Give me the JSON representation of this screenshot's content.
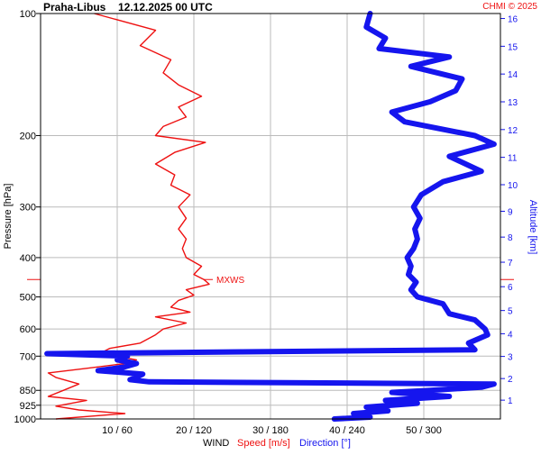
{
  "header": {
    "station": "Praha-Libus",
    "datetime": "12.12.2025 00 UTC",
    "copyright": "CHMI © 2025"
  },
  "colors": {
    "speed": "#ee1111",
    "direction": "#1515ee",
    "grid": "#bbbbbb",
    "axis": "#000000"
  },
  "chart_data": {
    "type": "line",
    "yaxis_left": {
      "label": "Pressure [hPa]",
      "scale": "log",
      "ticks": [
        100,
        200,
        300,
        400,
        500,
        600,
        700,
        850,
        925,
        1000
      ],
      "range": [
        1000,
        100
      ]
    },
    "yaxis_right": {
      "label": "Altitude [km]",
      "ticks": [
        1,
        2,
        3,
        4,
        5,
        6,
        7,
        8,
        9,
        10,
        11,
        12,
        13,
        14,
        15,
        16
      ]
    },
    "xaxis": {
      "ticks": [
        "10 / 60",
        "20 / 120",
        "30 / 180",
        "40 / 240",
        "50 / 300"
      ],
      "label_wind": "WIND",
      "label_speed": "Speed [m/s]",
      "label_direction": "Direction [°]",
      "speed_range": [
        0,
        60
      ],
      "direction_range": [
        0,
        360
      ]
    },
    "annotation": {
      "text": "MXWS",
      "pressure": 453,
      "speed": 21.3
    },
    "series": [
      {
        "name": "Speed [m/s]",
        "points": [
          [
            1000,
            2
          ],
          [
            970,
            11
          ],
          [
            950,
            5
          ],
          [
            930,
            2
          ],
          [
            900,
            6
          ],
          [
            880,
            1
          ],
          [
            850,
            3
          ],
          [
            820,
            5
          ],
          [
            790,
            2
          ],
          [
            770,
            1
          ],
          [
            750,
            6
          ],
          [
            730,
            11
          ],
          [
            715,
            12.5
          ],
          [
            700,
            10
          ],
          [
            685,
            8
          ],
          [
            670,
            9
          ],
          [
            650,
            13
          ],
          [
            620,
            15
          ],
          [
            600,
            16
          ],
          [
            580,
            19
          ],
          [
            560,
            15
          ],
          [
            545,
            19.5
          ],
          [
            530,
            17
          ],
          [
            510,
            18
          ],
          [
            495,
            20
          ],
          [
            480,
            19
          ],
          [
            465,
            22
          ],
          [
            453,
            21.3
          ],
          [
            440,
            20
          ],
          [
            420,
            21
          ],
          [
            400,
            19
          ],
          [
            380,
            18.5
          ],
          [
            360,
            19
          ],
          [
            340,
            18
          ],
          [
            320,
            19
          ],
          [
            300,
            18
          ],
          [
            280,
            19.5
          ],
          [
            265,
            17
          ],
          [
            250,
            17.5
          ],
          [
            235,
            15
          ],
          [
            220,
            17.5
          ],
          [
            208,
            21.5
          ],
          [
            200,
            15
          ],
          [
            190,
            16
          ],
          [
            180,
            19
          ],
          [
            170,
            18
          ],
          [
            160,
            21
          ],
          [
            150,
            18
          ],
          [
            140,
            16
          ],
          [
            130,
            17
          ],
          [
            120,
            13
          ],
          [
            110,
            15
          ],
          [
            100,
            7
          ]
        ]
      },
      {
        "name": "Direction [°]",
        "points": [
          [
            1000,
            230
          ],
          [
            990,
            258
          ],
          [
            970,
            245
          ],
          [
            955,
            272
          ],
          [
            935,
            255
          ],
          [
            915,
            295
          ],
          [
            900,
            270
          ],
          [
            880,
            320
          ],
          [
            860,
            275
          ],
          [
            850,
            305
          ],
          [
            835,
            345
          ],
          [
            820,
            355
          ],
          [
            810,
            85
          ],
          [
            800,
            70
          ],
          [
            790,
            75
          ],
          [
            775,
            80
          ],
          [
            760,
            45
          ],
          [
            745,
            65
          ],
          [
            730,
            75
          ],
          [
            715,
            60
          ],
          [
            700,
            68
          ],
          [
            690,
            5
          ],
          [
            675,
            340
          ],
          [
            650,
            335
          ],
          [
            620,
            350
          ],
          [
            600,
            348
          ],
          [
            570,
            340
          ],
          [
            550,
            320
          ],
          [
            520,
            315
          ],
          [
            500,
            295
          ],
          [
            480,
            290
          ],
          [
            460,
            294
          ],
          [
            440,
            288
          ],
          [
            420,
            290
          ],
          [
            400,
            287
          ],
          [
            380,
            292
          ],
          [
            360,
            295
          ],
          [
            340,
            293
          ],
          [
            320,
            297
          ],
          [
            300,
            292
          ],
          [
            280,
            298
          ],
          [
            260,
            315
          ],
          [
            245,
            345
          ],
          [
            225,
            320
          ],
          [
            210,
            355
          ],
          [
            200,
            340
          ],
          [
            185,
            285
          ],
          [
            175,
            275
          ],
          [
            165,
            305
          ],
          [
            155,
            325
          ],
          [
            145,
            330
          ],
          [
            135,
            290
          ],
          [
            128,
            320
          ],
          [
            122,
            265
          ],
          [
            115,
            270
          ],
          [
            108,
            255
          ],
          [
            100,
            258
          ]
        ]
      }
    ]
  }
}
